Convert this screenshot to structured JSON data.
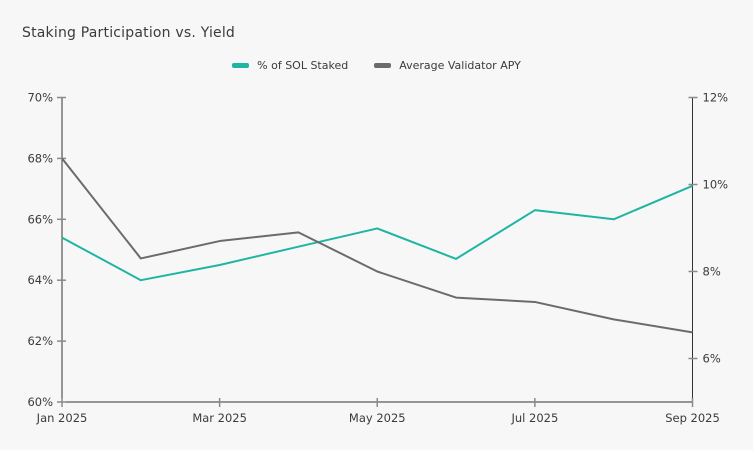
{
  "page": {
    "title": "Staking Participation vs. Yield",
    "background": "#f7f7f7"
  },
  "legend": {
    "items": [
      {
        "label": "% of SOL Staked",
        "color": "#1fb5a3"
      },
      {
        "label": "Average Validator APY",
        "color": "#6b6b6b"
      }
    ]
  },
  "chart_data": {
    "type": "line",
    "title": "Staking Participation vs. Yield",
    "categories": [
      "Jan 2025",
      "Feb 2025",
      "Mar 2025",
      "Apr 2025",
      "May 2025",
      "Jun 2025",
      "Jul 2025",
      "Aug 2025",
      "Sep 2025"
    ],
    "x_tick_labels": [
      "Jan 2025",
      "Mar 2025",
      "May 2025",
      "Jul 2025",
      "Sep 2025"
    ],
    "series": [
      {
        "name": "% of SOL Staked",
        "axis": "left",
        "color": "#1fb5a3",
        "values": [
          65.4,
          64.0,
          64.5,
          65.1,
          65.7,
          64.7,
          66.3,
          66.0,
          67.1
        ]
      },
      {
        "name": "Average Validator APY",
        "axis": "right",
        "color": "#6b6b6b",
        "values": [
          10.6,
          8.3,
          8.7,
          8.9,
          8.0,
          7.4,
          7.3,
          6.9,
          6.6
        ]
      }
    ],
    "left_axis": {
      "min": 60,
      "max": 70,
      "ticks": [
        60,
        62,
        64,
        66,
        68,
        70
      ],
      "tick_labels": [
        "60%",
        "62%",
        "64%",
        "66%",
        "68%",
        "70%"
      ]
    },
    "right_axis": {
      "min": 5,
      "max": 12,
      "ticks": [
        6,
        8,
        10,
        12
      ],
      "tick_labels": [
        "6%",
        "8%",
        "10%",
        "12%"
      ]
    },
    "grid": false,
    "legend_position": "top-center"
  }
}
